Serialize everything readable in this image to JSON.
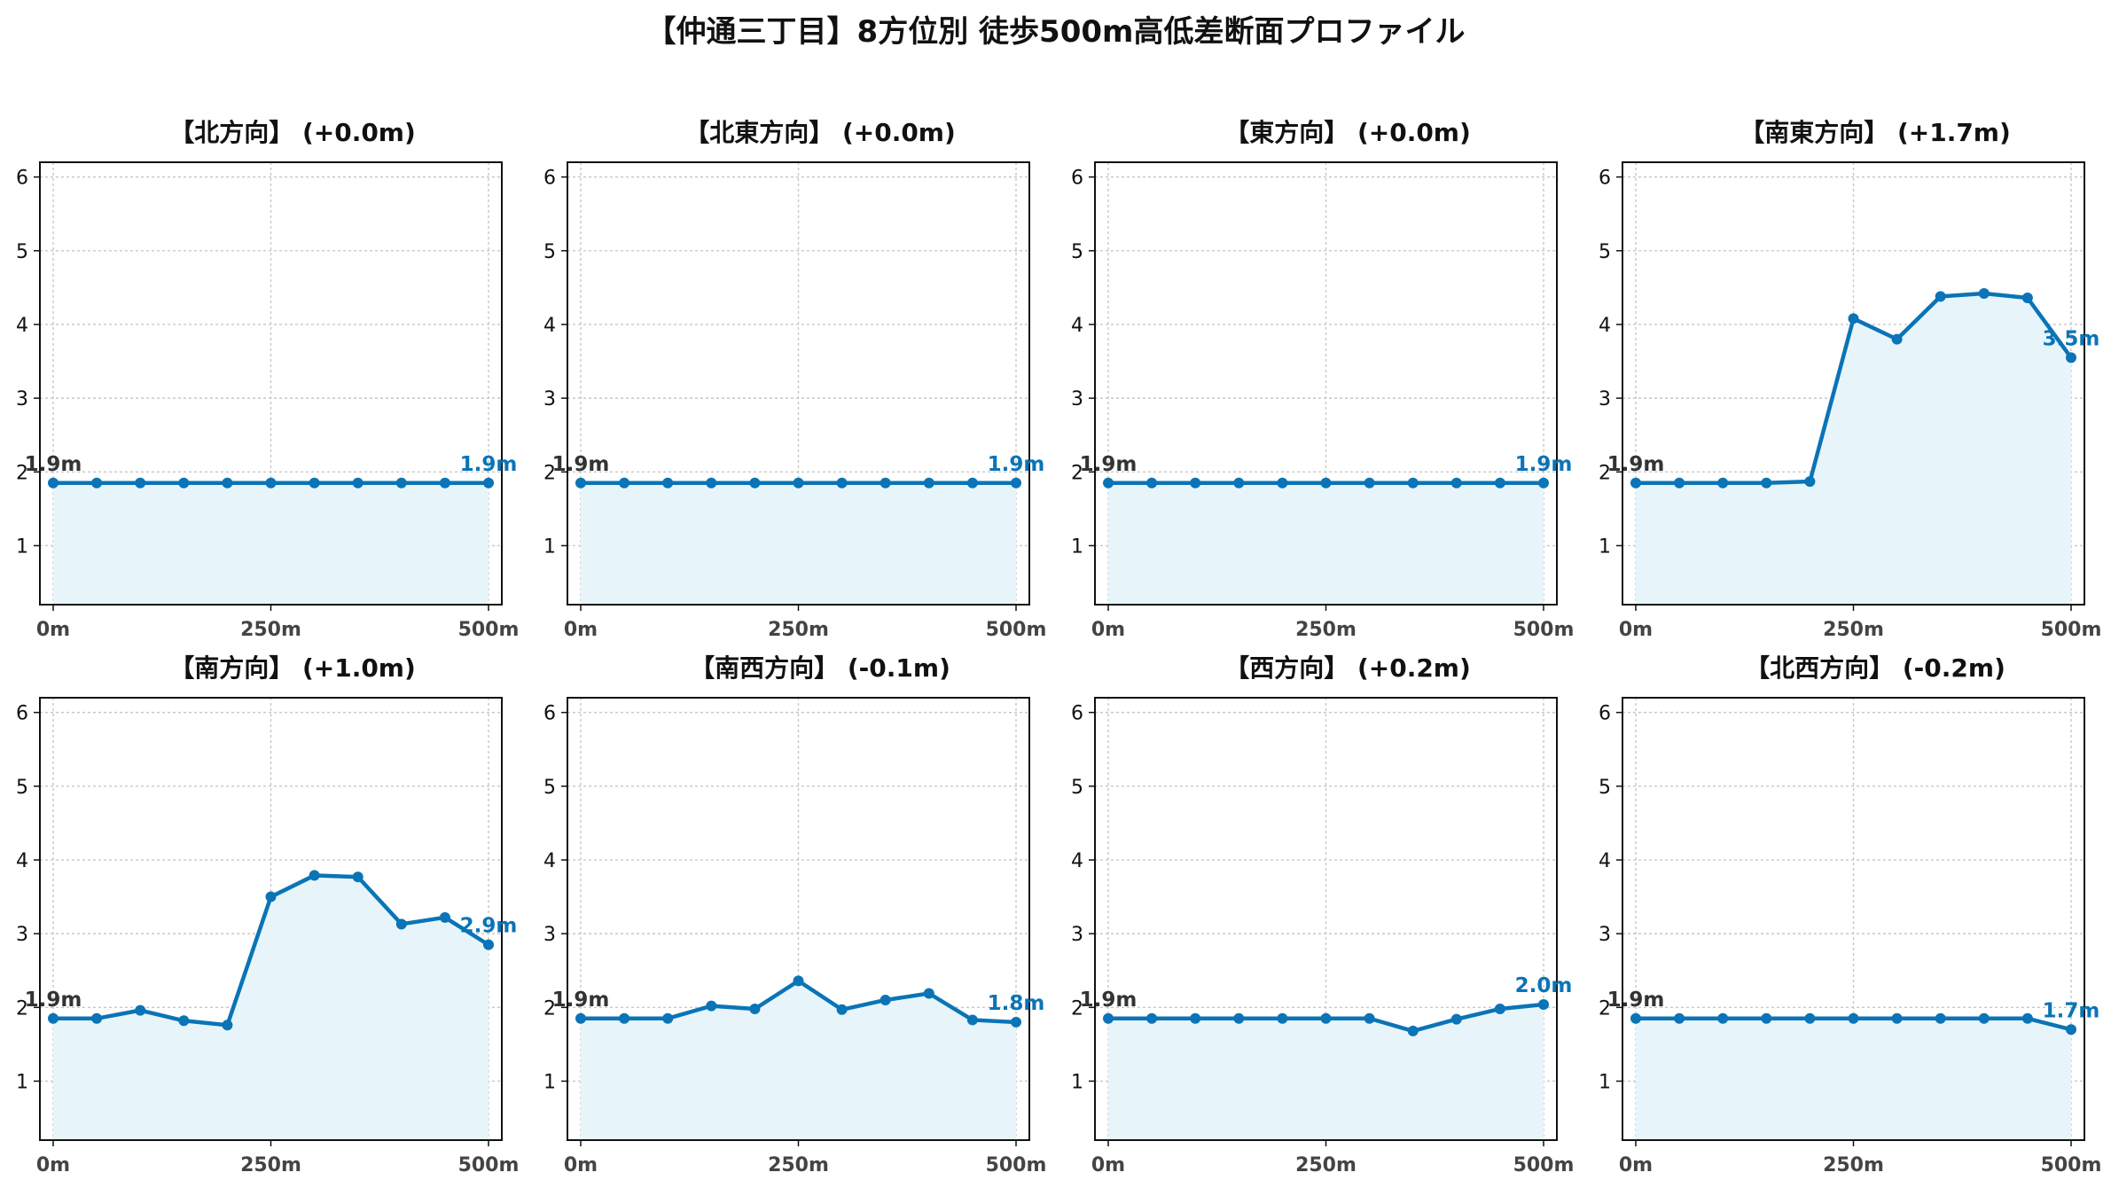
{
  "title": "【仲通三丁目】8方位別 徒歩500m高低差断面プロファイル",
  "chart_data": [
    {
      "type": "line",
      "title": "【北方向】 (+0.0m)",
      "x": [
        0,
        50,
        100,
        150,
        200,
        250,
        300,
        350,
        400,
        450,
        500
      ],
      "y": [
        1.85,
        1.85,
        1.85,
        1.85,
        1.85,
        1.85,
        1.85,
        1.85,
        1.85,
        1.85,
        1.85
      ],
      "start_label": "1.9m",
      "end_label": "1.9m",
      "xticks": [
        "0m",
        "250m",
        "500m"
      ],
      "ylim": [
        0.2,
        6.2
      ],
      "yticks": [
        1,
        2,
        3,
        4,
        5,
        6
      ],
      "grid": true,
      "color": "#0a74b7"
    },
    {
      "type": "line",
      "title": "【北東方向】 (+0.0m)",
      "x": [
        0,
        50,
        100,
        150,
        200,
        250,
        300,
        350,
        400,
        450,
        500
      ],
      "y": [
        1.85,
        1.85,
        1.85,
        1.85,
        1.85,
        1.85,
        1.85,
        1.85,
        1.85,
        1.85,
        1.85
      ],
      "start_label": "1.9m",
      "end_label": "1.9m",
      "xticks": [
        "0m",
        "250m",
        "500m"
      ],
      "ylim": [
        0.2,
        6.2
      ],
      "yticks": [
        1,
        2,
        3,
        4,
        5,
        6
      ],
      "grid": true,
      "color": "#0a74b7"
    },
    {
      "type": "line",
      "title": "【東方向】 (+0.0m)",
      "x": [
        0,
        50,
        100,
        150,
        200,
        250,
        300,
        350,
        400,
        450,
        500
      ],
      "y": [
        1.85,
        1.85,
        1.85,
        1.85,
        1.85,
        1.85,
        1.85,
        1.85,
        1.85,
        1.85,
        1.85
      ],
      "start_label": "1.9m",
      "end_label": "1.9m",
      "xticks": [
        "0m",
        "250m",
        "500m"
      ],
      "ylim": [
        0.2,
        6.2
      ],
      "yticks": [
        1,
        2,
        3,
        4,
        5,
        6
      ],
      "grid": true,
      "color": "#0a74b7"
    },
    {
      "type": "line",
      "title": "【南東方向】 (+1.7m)",
      "x": [
        0,
        50,
        100,
        150,
        200,
        250,
        300,
        350,
        400,
        450,
        500
      ],
      "y": [
        1.85,
        1.85,
        1.85,
        1.85,
        1.87,
        4.08,
        3.8,
        4.38,
        4.42,
        4.36,
        3.55
      ],
      "start_label": "1.9m",
      "end_label": "3.5m",
      "xticks": [
        "0m",
        "250m",
        "500m"
      ],
      "ylim": [
        0.2,
        6.2
      ],
      "yticks": [
        1,
        2,
        3,
        4,
        5,
        6
      ],
      "grid": true,
      "color": "#0a74b7"
    },
    {
      "type": "line",
      "title": "【南方向】 (+1.0m)",
      "x": [
        0,
        50,
        100,
        150,
        200,
        250,
        300,
        350,
        400,
        450,
        500
      ],
      "y": [
        1.85,
        1.85,
        1.96,
        1.82,
        1.76,
        3.5,
        3.79,
        3.77,
        3.13,
        3.22,
        2.85
      ],
      "start_label": "1.9m",
      "end_label": "2.9m",
      "xticks": [
        "0m",
        "250m",
        "500m"
      ],
      "ylim": [
        0.2,
        6.2
      ],
      "yticks": [
        1,
        2,
        3,
        4,
        5,
        6
      ],
      "grid": true,
      "color": "#0a74b7"
    },
    {
      "type": "line",
      "title": "【南西方向】 (-0.1m)",
      "x": [
        0,
        50,
        100,
        150,
        200,
        250,
        300,
        350,
        400,
        450,
        500
      ],
      "y": [
        1.85,
        1.85,
        1.85,
        2.02,
        1.98,
        2.36,
        1.97,
        2.1,
        2.19,
        1.83,
        1.8
      ],
      "start_label": "1.9m",
      "end_label": "1.8m",
      "xticks": [
        "0m",
        "250m",
        "500m"
      ],
      "ylim": [
        0.2,
        6.2
      ],
      "yticks": [
        1,
        2,
        3,
        4,
        5,
        6
      ],
      "grid": true,
      "color": "#0a74b7"
    },
    {
      "type": "line",
      "title": "【西方向】 (+0.2m)",
      "x": [
        0,
        50,
        100,
        150,
        200,
        250,
        300,
        350,
        400,
        450,
        500
      ],
      "y": [
        1.85,
        1.85,
        1.85,
        1.85,
        1.85,
        1.85,
        1.85,
        1.68,
        1.84,
        1.98,
        2.04
      ],
      "start_label": "1.9m",
      "end_label": "2.0m",
      "xticks": [
        "0m",
        "250m",
        "500m"
      ],
      "ylim": [
        0.2,
        6.2
      ],
      "yticks": [
        1,
        2,
        3,
        4,
        5,
        6
      ],
      "grid": true,
      "color": "#0a74b7"
    },
    {
      "type": "line",
      "title": "【北西方向】 (-0.2m)",
      "x": [
        0,
        50,
        100,
        150,
        200,
        250,
        300,
        350,
        400,
        450,
        500
      ],
      "y": [
        1.85,
        1.85,
        1.85,
        1.85,
        1.85,
        1.85,
        1.85,
        1.85,
        1.85,
        1.85,
        1.7
      ],
      "start_label": "1.9m",
      "end_label": "1.7m",
      "xticks": [
        "0m",
        "250m",
        "500m"
      ],
      "ylim": [
        0.2,
        6.2
      ],
      "yticks": [
        1,
        2,
        3,
        4,
        5,
        6
      ],
      "grid": true,
      "color": "#0a74b7"
    }
  ]
}
